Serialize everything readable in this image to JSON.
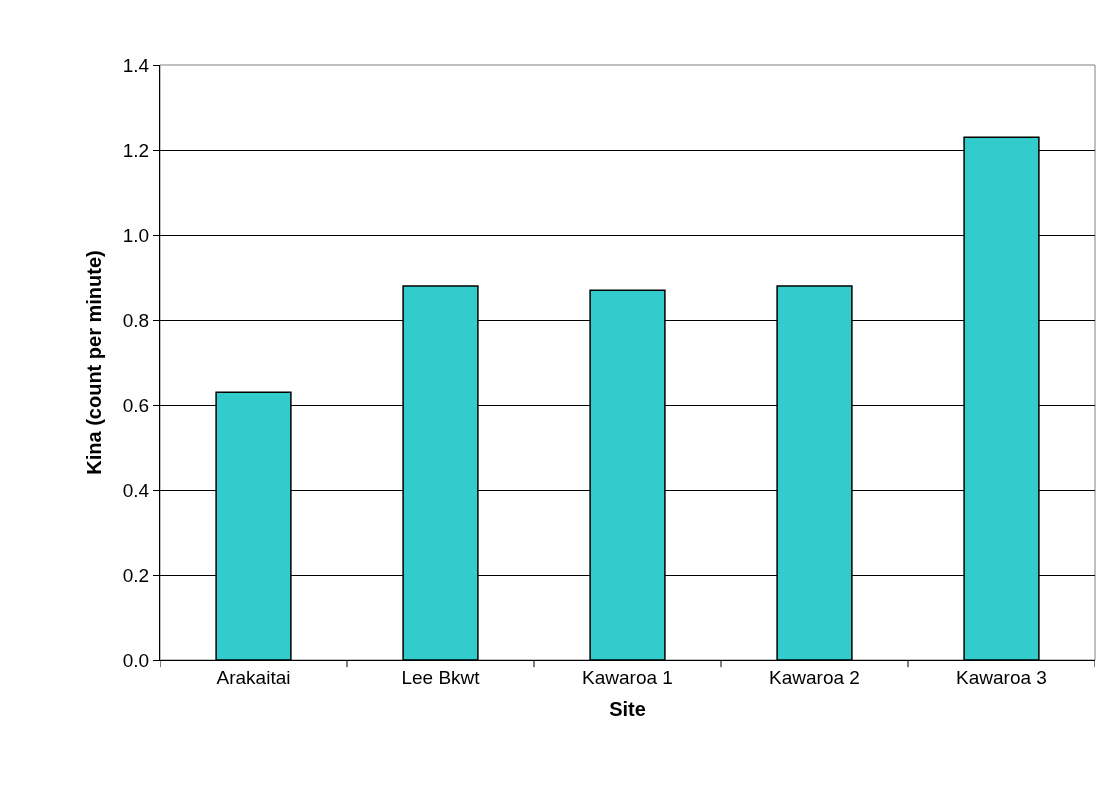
{
  "chart_data": {
    "type": "bar",
    "xlabel": "Site",
    "ylabel": "Kina (count per minute)",
    "categories": [
      "Arakaitai",
      "Lee Bkwt",
      "Kawaroa 1",
      "Kawaroa 2",
      "Kawaroa 3"
    ],
    "values": [
      0.63,
      0.88,
      0.87,
      0.88,
      1.23
    ],
    "color": "#33cccc",
    "ylim": [
      0,
      1.4
    ],
    "yticks": [
      {
        "value": 0,
        "label": "0.0"
      },
      {
        "value": 0.2,
        "label": "0.2"
      },
      {
        "value": 0.4,
        "label": "0.4"
      },
      {
        "value": 0.6,
        "label": "0.6"
      },
      {
        "value": 0.8,
        "label": "0.8"
      },
      {
        "value": 1.0,
        "label": "1.0"
      },
      {
        "value": 1.2,
        "label": "1.2"
      },
      {
        "value": 1.4,
        "label": "1.4"
      }
    ],
    "grid": "y"
  }
}
